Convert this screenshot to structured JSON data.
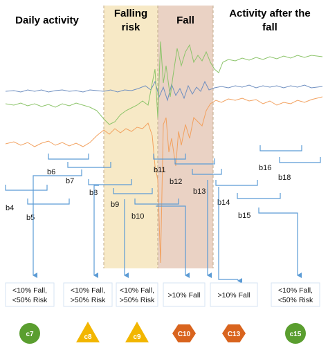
{
  "headings": {
    "daily": "Daily activity",
    "falling_risk_1": "Falling",
    "falling_risk_2": "risk",
    "fall": "Fall",
    "after_1": "Activity after the",
    "after_2": "fall"
  },
  "segments": [
    "b4",
    "b5",
    "b6",
    "b7",
    "b8",
    "b9",
    "b10",
    "b11",
    "b12",
    "b13",
    "b14",
    "b15",
    "b16",
    "b18"
  ],
  "outcomes": [
    {
      "line1": "<10% Fall,",
      "line2": "<50% Risk",
      "badge": "c7",
      "shape": "circle",
      "color": "#5a9e2f"
    },
    {
      "line1": "<10% Fall,",
      "line2": ">50% Risk",
      "badge": "c8",
      "shape": "triangle",
      "color": "#f2b600"
    },
    {
      "line1": "<10% Fall,",
      "line2": ">50% Risk",
      "badge": "c9",
      "shape": "triangle",
      "color": "#f2b600"
    },
    {
      "line1": ">10% Fall",
      "line2": "",
      "badge": "C10",
      "shape": "hexagon",
      "color": "#d9641e"
    },
    {
      "line1": ">10% Fall",
      "line2": "",
      "badge": "C13",
      "shape": "hexagon",
      "color": "#d9641e"
    },
    {
      "line1": "<10% Fall,",
      "line2": "<50% Risk",
      "badge": "c15",
      "shape": "circle",
      "color": "#5a9e2f"
    }
  ],
  "colors": {
    "falling_risk_zone": "#f7e9c6",
    "fall_zone": "#ead2c4",
    "signal_blue": "#6f8fc0",
    "signal_green": "#8cc46a",
    "signal_orange": "#f2a15f",
    "bracket": "#5b9bd5",
    "arrow": "#5b9bd5"
  }
}
